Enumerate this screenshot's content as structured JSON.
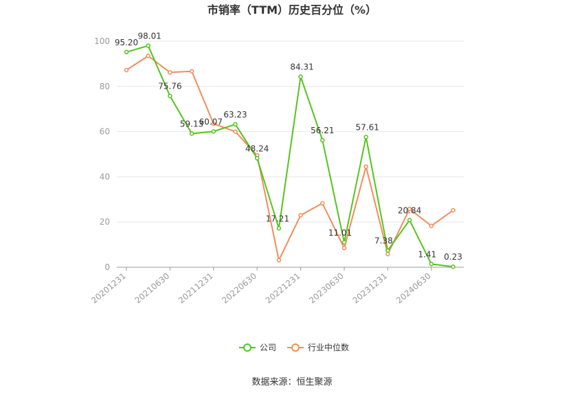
{
  "chart_data": {
    "type": "line",
    "title": "市销率（TTM）历史百分位（%）",
    "source": "数据来源：恒生聚源",
    "ylim": [
      0,
      100
    ],
    "yticks": [
      0,
      20,
      40,
      60,
      80,
      100
    ],
    "x_tick_labels": [
      "20201231",
      "20210630",
      "20211231",
      "20220630",
      "20221231",
      "20230630",
      "20231231",
      "20240630"
    ],
    "x_tick_indices": [
      0,
      2,
      4,
      6,
      8,
      10,
      12,
      14
    ],
    "grid": true,
    "legend_position": "bottom",
    "series": [
      {
        "name": "公司",
        "color": "#52c41a",
        "values": [
          95.2,
          98.01,
          75.76,
          59.13,
          60.07,
          63.23,
          48.24,
          17.21,
          84.31,
          56.21,
          11.01,
          57.61,
          7.38,
          20.84,
          1.41,
          0.23
        ],
        "labels": [
          "95.20",
          "98.01",
          "75.76",
          "59.13",
          "60.07",
          "63.23",
          "48.24",
          "17.21",
          "84.31",
          "56.21",
          "11.01",
          "57.61",
          "7.38",
          "20.84",
          "1.41",
          "0.23"
        ]
      },
      {
        "name": "行业中位数",
        "color": "#f28c5b",
        "values": [
          87.2,
          93.5,
          86.2,
          86.7,
          63.5,
          60.0,
          49.5,
          3.1,
          23.0,
          28.3,
          8.5,
          44.5,
          5.8,
          25.8,
          18.3,
          25.2
        ]
      }
    ]
  }
}
